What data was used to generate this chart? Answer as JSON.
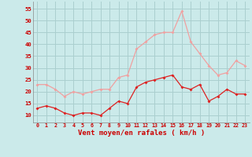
{
  "hours": [
    0,
    1,
    2,
    3,
    4,
    5,
    6,
    7,
    8,
    9,
    10,
    11,
    12,
    13,
    14,
    15,
    16,
    17,
    18,
    19,
    20,
    21,
    22,
    23
  ],
  "wind_avg": [
    13,
    14,
    13,
    11,
    10,
    11,
    11,
    10,
    13,
    16,
    15,
    22,
    24,
    25,
    26,
    27,
    22,
    21,
    23,
    16,
    18,
    21,
    19,
    19
  ],
  "wind_gust": [
    23,
    23,
    21,
    18,
    20,
    19,
    20,
    21,
    21,
    26,
    27,
    38,
    41,
    44,
    45,
    45,
    54,
    41,
    36,
    31,
    27,
    28,
    33,
    31
  ],
  "xlabel": "Vent moyen/en rafales ( km/h )",
  "ylim_min": 7,
  "ylim_max": 58,
  "yticks": [
    10,
    15,
    20,
    25,
    30,
    35,
    40,
    45,
    50,
    55
  ],
  "bg_color": "#cbeaea",
  "grid_color": "#aacfcf",
  "avg_color": "#dd2222",
  "gust_color": "#f0a0a0",
  "xlabel_color": "#cc0000",
  "tick_color": "#cc0000"
}
